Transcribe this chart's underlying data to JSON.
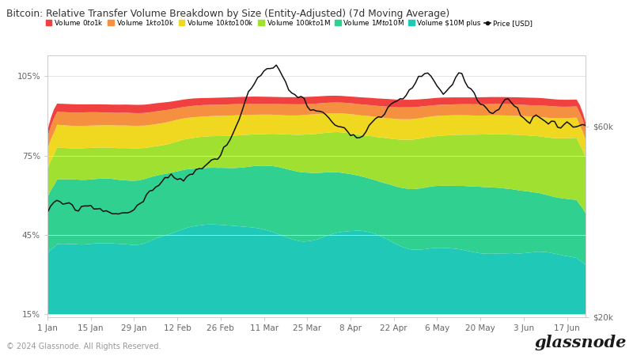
{
  "title": "Bitcoin: Relative Transfer Volume Breakdown by Size (Entity-Adjusted) (7d Moving Average)",
  "x_labels": [
    "1 Jan",
    "15 Jan",
    "29 Jan",
    "12 Feb",
    "26 Feb",
    "11 Mar",
    "25 Mar",
    "8 Apr",
    "22 Apr",
    "6 May",
    "20 May",
    "3 Jun",
    "17 Jun"
  ],
  "legend_labels": [
    "Volume $0 to $1k",
    "Volume $1k to $10k",
    "Volume $10k to $100k",
    "Volume $100k to $1M",
    "Volume $1M to $10M",
    "Volume $10M plus",
    "Price [USD]"
  ],
  "colors": [
    "#f04040",
    "#f59040",
    "#f0d820",
    "#a0e030",
    "#30d090",
    "#20c8b8",
    "#111111"
  ],
  "background_color": "#ffffff",
  "footer": "© 2024 Glassnode. All Rights Reserved.",
  "brand": "glassnode",
  "n_points": 175,
  "ylim": [
    14,
    113
  ],
  "yticks": [
    15,
    45,
    75,
    105
  ],
  "xtick_positions": [
    0,
    14,
    28,
    42,
    56,
    70,
    84,
    98,
    112,
    126,
    140,
    154,
    168
  ],
  "price_min_k": 20,
  "price_max_k": 75,
  "pct_min": 14,
  "pct_max": 113
}
